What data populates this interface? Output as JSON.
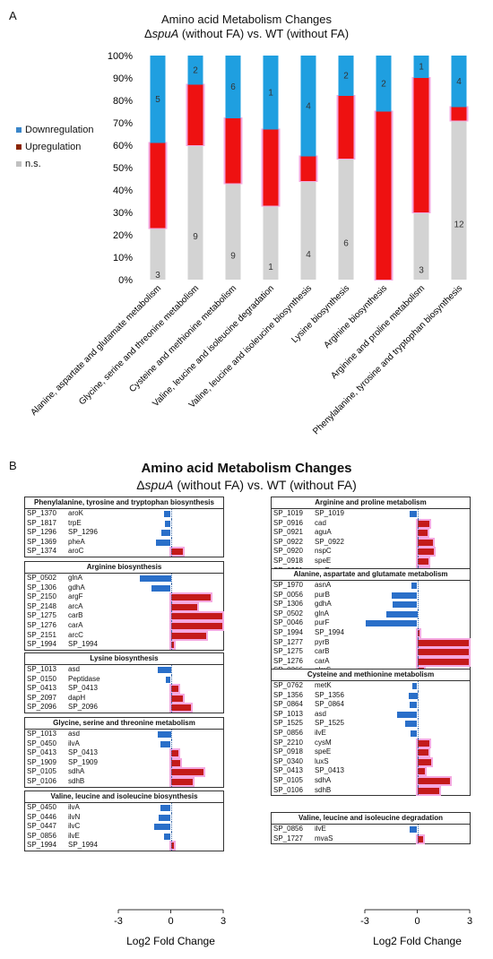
{
  "panel_a_label": "A",
  "panel_b_label": "B",
  "title_a": {
    "line1": "Amino acid Metabolism Changes",
    "prefix": "Δ",
    "gene": "spuA",
    "rest": " (without FA) vs. WT (without FA)"
  },
  "title_b": {
    "line1": "Amino acid Metabolism Changes",
    "prefix": "Δ",
    "gene": "spuA",
    "rest": " (without FA) vs. WT (without FA)"
  },
  "colors": {
    "down": "#1f9fe0",
    "up": "#ee1111",
    "ns": "#d3d3d3",
    "legend_up": "#8b2500",
    "bar_down": "#2a6fc9",
    "bar_up": "#c41a1a",
    "glow": "#f4a8e0"
  },
  "legend": [
    {
      "label": "Downregulation",
      "color": "#3a86c9"
    },
    {
      "label": "Upregulation",
      "color": "#8b2500"
    },
    {
      "label": "n.s.",
      "color": "#c0c0c0"
    }
  ],
  "chart_data": [
    {
      "type": "bar",
      "stacked": true,
      "title": "Amino acid Metabolism Changes ΔspuA (without FA) vs. WT (without FA)",
      "y_ticks": [
        "0%",
        "10%",
        "20%",
        "30%",
        "40%",
        "50%",
        "60%",
        "70%",
        "80%",
        "90%",
        "100%"
      ],
      "ylim": [
        0,
        100
      ],
      "categories": [
        "Alanine, aspartate and glutamate metabolism",
        "Glycine, serine and threonine metabolism",
        "Cysteine and methionine metabolism",
        "Valine, leucine and isoleucine degradation",
        "Valine, leucine and isoleucine biosynthesis",
        "Lysine biosynthesis",
        "Arginine biosynthesis",
        "Arginine and proline metabolism",
        "Phenylalanine, tyrosine and tryptophan biosynthesis"
      ],
      "series": [
        {
          "name": "n.s.",
          "percent": [
            23,
            60,
            43,
            33,
            44,
            54,
            0,
            30,
            71
          ],
          "labels": [
            "3",
            "9",
            "9",
            "1",
            "4",
            "6",
            "0",
            "3",
            "12"
          ]
        },
        {
          "name": "Upregulation",
          "percent": [
            38,
            27,
            29,
            34,
            11,
            28,
            75,
            60,
            6
          ],
          "labels": [
            "",
            "",
            "",
            "",
            "",
            "",
            "",
            "",
            ""
          ]
        },
        {
          "name": "Downregulation",
          "percent": [
            39,
            13,
            28,
            33,
            45,
            18,
            25,
            10,
            23
          ],
          "labels": [
            "5",
            "2",
            "6",
            "1",
            "4",
            "2",
            "2",
            "1",
            "4"
          ]
        }
      ]
    },
    {
      "type": "bar",
      "orientation": "horizontal",
      "xlabel": "Log2 Fold Change",
      "xlim": [
        -3,
        3
      ],
      "x_ticks": [
        "-3",
        "0",
        "3"
      ],
      "groups_left": [
        {
          "title": "Phenylalanine, tyrosine and tryptophan biosynthesis",
          "genes": [
            {
              "id": "SP_1370",
              "name": "aroK",
              "value": -0.4
            },
            {
              "id": "SP_1817",
              "name": "trpE",
              "value": -0.35
            },
            {
              "id": "SP_1296",
              "name": "SP_1296",
              "value": -0.55
            },
            {
              "id": "SP_1369",
              "name": "pheA",
              "value": -0.85
            },
            {
              "id": "SP_1374",
              "name": "aroC",
              "value": 0.7
            }
          ]
        },
        {
          "title": "Arginine biosynthesis",
          "genes": [
            {
              "id": "SP_0502",
              "name": "glnA",
              "value": -1.75
            },
            {
              "id": "SP_1306",
              "name": "gdhA",
              "value": -1.1
            },
            {
              "id": "SP_2150",
              "name": "argF",
              "value": 2.3
            },
            {
              "id": "SP_2148",
              "name": "arcA",
              "value": 1.5
            },
            {
              "id": "SP_1275",
              "name": "carB",
              "value": 2.95
            },
            {
              "id": "SP_1276",
              "name": "carA",
              "value": 2.95
            },
            {
              "id": "SP_2151",
              "name": "arcC",
              "value": 2.0
            },
            {
              "id": "SP_1994",
              "name": "SP_1994",
              "value": 0.2
            }
          ]
        },
        {
          "title": "Lysine biosynthesis",
          "genes": [
            {
              "id": "SP_1013",
              "name": "asd",
              "value": -0.75
            },
            {
              "id": "SP_0150",
              "name": "Peptidase",
              "value": -0.3
            },
            {
              "id": "SP_0413",
              "name": "SP_0413",
              "value": 0.45
            },
            {
              "id": "SP_2097",
              "name": "dapH",
              "value": 0.7
            },
            {
              "id": "SP_2096",
              "name": "SP_2096",
              "value": 1.15
            }
          ]
        },
        {
          "title": "Glycine, serine and threonine metabolism",
          "genes": [
            {
              "id": "SP_1013",
              "name": "asd",
              "value": -0.75
            },
            {
              "id": "SP_0450",
              "name": "ilvA",
              "value": -0.6
            },
            {
              "id": "SP_0413",
              "name": "SP_0413",
              "value": 0.45
            },
            {
              "id": "SP_1909",
              "name": "SP_1909",
              "value": 0.55
            },
            {
              "id": "SP_0105",
              "name": "sdhA",
              "value": 1.85
            },
            {
              "id": "SP_0106",
              "name": "sdhB",
              "value": 1.25
            }
          ]
        },
        {
          "title": "Valine, leucine and isoleucine biosynthesis",
          "genes": [
            {
              "id": "SP_0450",
              "name": "ilvA",
              "value": -0.6
            },
            {
              "id": "SP_0446",
              "name": "ilvN",
              "value": -0.7
            },
            {
              "id": "SP_0447",
              "name": "ilvC",
              "value": -0.95
            },
            {
              "id": "SP_0856",
              "name": "ilvE",
              "value": -0.4
            },
            {
              "id": "SP_1994",
              "name": "SP_1994",
              "value": 0.2
            }
          ]
        }
      ],
      "groups_right": [
        {
          "title": "Arginine and proline metabolism",
          "genes": [
            {
              "id": "SP_1019",
              "name": "SP_1019",
              "value": -0.45
            },
            {
              "id": "SP_0916",
              "name": "cad",
              "value": 0.7
            },
            {
              "id": "SP_0921",
              "name": "aguA",
              "value": 0.6
            },
            {
              "id": "SP_0922",
              "name": "SP_0922",
              "value": 0.9
            },
            {
              "id": "SP_0920",
              "name": "nspC",
              "value": 0.95
            },
            {
              "id": "SP_0918",
              "name": "speE",
              "value": 0.65
            },
            {
              "id": "SP_0931",
              "name": "proB",
              "value": 0.65
            }
          ]
        },
        {
          "title": "Alanine, aspartate and glutamate metabolism",
          "genes": [
            {
              "id": "SP_1970",
              "name": "asnA",
              "value": -0.35
            },
            {
              "id": "SP_0056",
              "name": "purB",
              "value": -1.45
            },
            {
              "id": "SP_1306",
              "name": "gdhA",
              "value": -1.4
            },
            {
              "id": "SP_0502",
              "name": "glnA",
              "value": -1.75
            },
            {
              "id": "SP_0046",
              "name": "purF",
              "value": -2.95
            },
            {
              "id": "SP_1994",
              "name": "SP_1994",
              "value": 0.15
            },
            {
              "id": "SP_1277",
              "name": "pyrB",
              "value": 2.95
            },
            {
              "id": "SP_1275",
              "name": "carB",
              "value": 2.95
            },
            {
              "id": "SP_1276",
              "name": "carA",
              "value": 2.95
            },
            {
              "id": "SP_0266",
              "name": "glmS",
              "value": 0.4
            }
          ]
        },
        {
          "title": "Cysteine and methionine metabolism",
          "genes": [
            {
              "id": "SP_0762",
              "name": "metK",
              "value": -0.3
            },
            {
              "id": "SP_1356",
              "name": "SP_1356",
              "value": -0.5
            },
            {
              "id": "SP_0864",
              "name": "SP_0864",
              "value": -0.45
            },
            {
              "id": "SP_1013",
              "name": "asd",
              "value": -1.15
            },
            {
              "id": "SP_1525",
              "name": "SP_1525",
              "value": -0.7
            },
            {
              "id": "SP_0856",
              "name": "ilvE",
              "value": -0.4
            },
            {
              "id": "SP_2210",
              "name": "cysM",
              "value": 0.7
            },
            {
              "id": "SP_0918",
              "name": "speE",
              "value": 0.65
            },
            {
              "id": "SP_0340",
              "name": "luxS",
              "value": 0.8
            },
            {
              "id": "SP_0413",
              "name": "SP_0413",
              "value": 0.45
            },
            {
              "id": "SP_0105",
              "name": "sdhA",
              "value": 1.85
            },
            {
              "id": "SP_0106",
              "name": "sdhB",
              "value": 1.25
            }
          ]
        },
        {
          "title": "Valine, leucine and isoleucine degradation",
          "genes": [
            {
              "id": "SP_0856",
              "name": "ilvE",
              "value": -0.45
            },
            {
              "id": "SP_1727",
              "name": "mvaS",
              "value": 0.35
            }
          ]
        }
      ]
    }
  ]
}
